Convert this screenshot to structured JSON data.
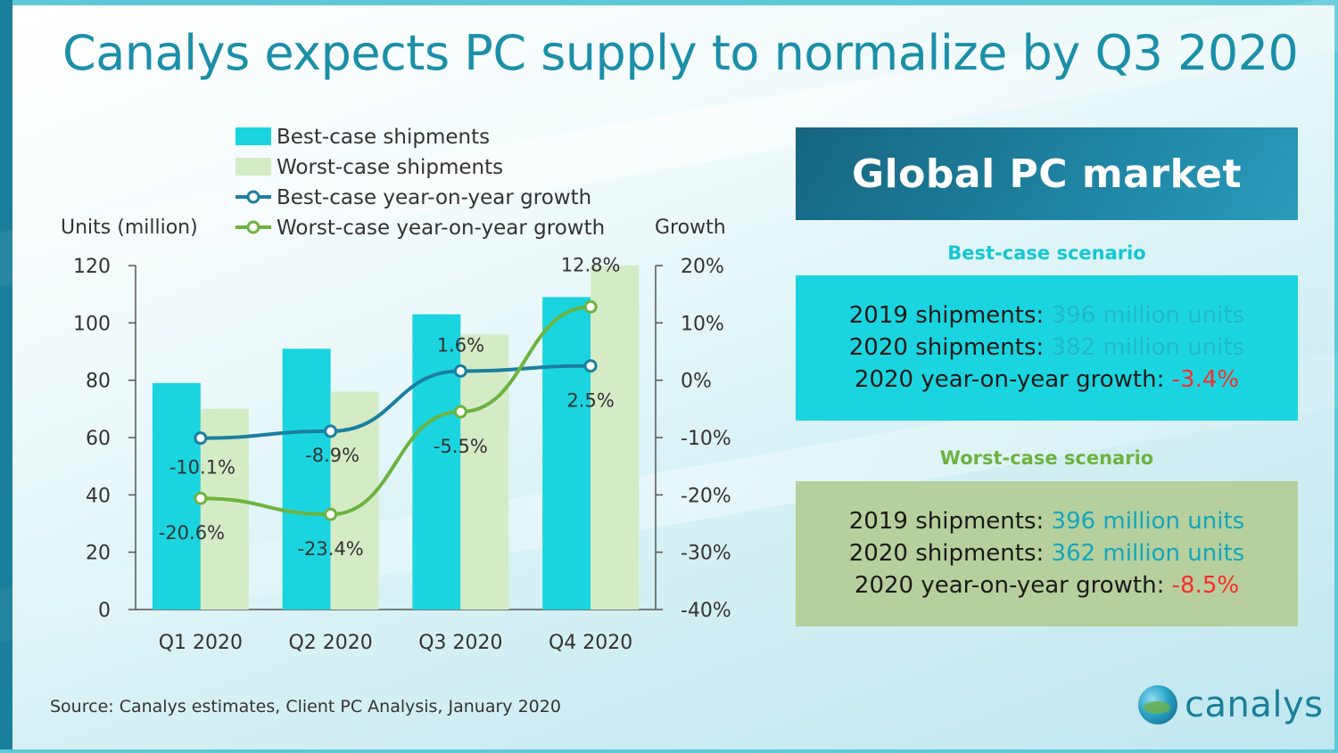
{
  "title": "Canalys expects PC supply to normalize by Q3 2020",
  "chart_data": {
    "type": "bar",
    "categories": [
      "Q1 2020",
      "Q2 2020",
      "Q3 2020",
      "Q4 2020"
    ],
    "ylabel": "Units (million)",
    "y2label": "Growth",
    "ylim": [
      0,
      120
    ],
    "yticks": [
      "0",
      "20",
      "40",
      "60",
      "80",
      "100",
      "120"
    ],
    "y2lim": [
      -40,
      20
    ],
    "y2ticks": [
      "-40%",
      "-30%",
      "-20%",
      "-10%",
      "0%",
      "10%",
      "20%"
    ],
    "legend": [
      {
        "label": "Best-case shipments",
        "kind": "bar",
        "color": "#1ad5df"
      },
      {
        "label": "Worst-case shipments",
        "kind": "bar",
        "color": "#d5ebc6"
      },
      {
        "label": "Best-case year-on-year growth",
        "kind": "line",
        "color": "#1a7fa0"
      },
      {
        "label": "Worst-case year-on-year growth",
        "kind": "line",
        "color": "#6db33f"
      }
    ],
    "series": [
      {
        "name": "Best-case shipments",
        "axis": "left",
        "color": "#1ad5df",
        "values": [
          79,
          91,
          103,
          109
        ]
      },
      {
        "name": "Worst-case shipments",
        "axis": "left",
        "color": "#d5ebc6",
        "values": [
          70,
          76,
          96,
          120
        ]
      },
      {
        "name": "Best-case year-on-year growth",
        "axis": "right",
        "color": "#1a7fa0",
        "values": [
          -10.1,
          -8.9,
          1.6,
          2.5
        ],
        "labels": [
          "-10.1%",
          "-8.9%",
          "1.6%",
          "2.5%"
        ]
      },
      {
        "name": "Worst-case year-on-year growth",
        "axis": "right",
        "color": "#6db33f",
        "values": [
          -20.6,
          -23.4,
          -5.5,
          12.8
        ],
        "labels": [
          "-20.6%",
          "-23.4%",
          "-5.5%",
          "12.8%"
        ]
      }
    ]
  },
  "panel": {
    "heading": "Global PC market",
    "best": {
      "title": "Best-case scenario",
      "rows": [
        {
          "label": "2019 shipments:",
          "value": "396 million units"
        },
        {
          "label": "2020 shipments:",
          "value": "382 million units"
        },
        {
          "label": "2020 year-on-year  growth:",
          "value": "-3.4%"
        }
      ]
    },
    "worst": {
      "title": "Worst-case scenario",
      "rows": [
        {
          "label": "2019 shipments:",
          "value": "396 million units"
        },
        {
          "label": "2020 shipments:",
          "value": "362 million units"
        },
        {
          "label": "2020 year-on-year  growth:",
          "value": "-8.5%"
        }
      ]
    }
  },
  "source": "Source:  Canalys estimates, Client PC Analysis, January 2020",
  "logo_text": "canalys"
}
